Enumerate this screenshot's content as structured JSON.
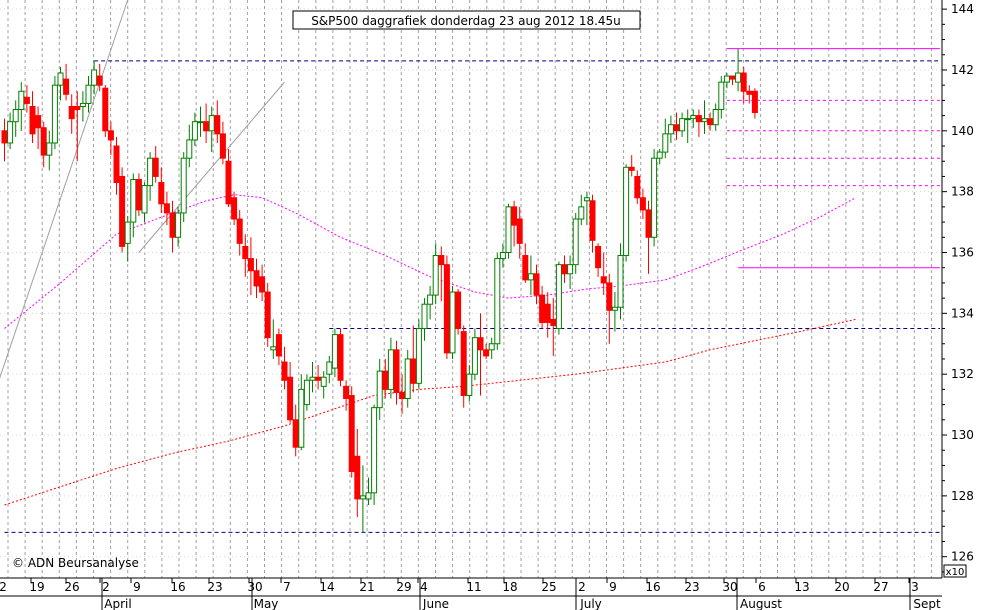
{
  "chart_data": {
    "type": "candlestick",
    "title": "S&P500 daggrafiek donderdag 23 aug 2012 18.45u",
    "copyright": "© ADN Beursanalyse",
    "y_unit_label": "x10",
    "ylim": [
      125.3,
      144.3
    ],
    "y_ticks": [
      126,
      128,
      130,
      132,
      134,
      136,
      138,
      140,
      142,
      144
    ],
    "day_labels": [
      "2",
      "19",
      "26",
      "2",
      "9",
      "16",
      "23",
      "30",
      "7",
      "14",
      "21",
      "29",
      "4",
      "11",
      "18",
      "25",
      "2",
      "9",
      "16",
      "23",
      "30",
      "6",
      "13",
      "20",
      "27",
      "3"
    ],
    "month_labels": [
      "April",
      "May",
      "June",
      "July",
      "August",
      "Sept"
    ],
    "colors": {
      "up": "#008000",
      "down": "#ff0000",
      "ma_short": "#ff00ff",
      "ma_long": "#ff0000",
      "support_line": "#000080",
      "fib_line": "#ff00ff",
      "channel": "#a0a0a0",
      "grid": "#a0a0a0"
    },
    "candles": [
      [
        140.0,
        140.4,
        139.0,
        139.6
      ],
      [
        139.6,
        140.6,
        139.4,
        140.3
      ],
      [
        140.3,
        141.0,
        139.8,
        140.7
      ],
      [
        140.7,
        141.6,
        140.0,
        141.3
      ],
      [
        141.1,
        141.5,
        140.6,
        140.9
      ],
      [
        140.8,
        141.3,
        139.6,
        139.9
      ],
      [
        140.5,
        140.8,
        139.4,
        140.1
      ],
      [
        140.1,
        140.3,
        138.8,
        139.2
      ],
      [
        139.2,
        140.0,
        138.7,
        139.6
      ],
      [
        139.6,
        141.8,
        139.4,
        141.5
      ],
      [
        141.5,
        142.1,
        141.0,
        141.9
      ],
      [
        141.7,
        142.2,
        141.0,
        141.2
      ],
      [
        140.8,
        141.2,
        139.9,
        140.4
      ],
      [
        140.8,
        141.3,
        139.0,
        140.7
      ],
      [
        140.8,
        141.3,
        140.3,
        140.9
      ],
      [
        140.9,
        141.8,
        140.6,
        141.5
      ],
      [
        141.5,
        142.3,
        141.2,
        142.0
      ],
      [
        141.8,
        142.2,
        141.3,
        141.5
      ],
      [
        141.4,
        141.5,
        139.8,
        140.0
      ],
      [
        140.0,
        140.3,
        139.2,
        139.7
      ],
      [
        139.5,
        139.8,
        137.9,
        138.3
      ],
      [
        138.5,
        138.8,
        136.0,
        136.2
      ],
      [
        136.3,
        137.2,
        135.7,
        137.0
      ],
      [
        137.0,
        138.6,
        136.5,
        138.4
      ],
      [
        138.4,
        138.6,
        137.2,
        137.4
      ],
      [
        137.3,
        138.3,
        137.0,
        138.2
      ],
      [
        138.2,
        139.3,
        137.7,
        139.1
      ],
      [
        139.1,
        139.5,
        138.3,
        138.5
      ],
      [
        138.3,
        138.8,
        137.3,
        137.6
      ],
      [
        137.6,
        138.0,
        136.9,
        137.3
      ],
      [
        137.3,
        137.7,
        136.0,
        136.5
      ],
      [
        136.5,
        137.5,
        136.2,
        137.3
      ],
      [
        137.3,
        139.3,
        137.0,
        139.1
      ],
      [
        139.1,
        140.2,
        138.8,
        139.7
      ],
      [
        139.7,
        140.6,
        139.5,
        140.3
      ],
      [
        140.3,
        140.8,
        139.8,
        140.3
      ],
      [
        140.3,
        140.9,
        139.6,
        140.0
      ],
      [
        140.0,
        140.8,
        139.3,
        140.5
      ],
      [
        140.5,
        141.0,
        139.6,
        139.9
      ],
      [
        139.9,
        140.3,
        138.9,
        139.1
      ],
      [
        139.0,
        139.4,
        137.5,
        137.6
      ],
      [
        137.8,
        138.0,
        136.9,
        137.1
      ],
      [
        137.1,
        137.4,
        135.9,
        136.3
      ],
      [
        136.2,
        136.6,
        135.2,
        135.8
      ],
      [
        135.8,
        136.5,
        134.6,
        135.4
      ],
      [
        135.4,
        135.8,
        134.5,
        134.9
      ],
      [
        135.2,
        135.6,
        134.4,
        134.7
      ],
      [
        134.7,
        135.0,
        132.9,
        133.2
      ],
      [
        132.8,
        133.8,
        132.5,
        132.9
      ],
      [
        133.3,
        133.5,
        132.3,
        132.6
      ],
      [
        132.4,
        132.9,
        131.5,
        131.8
      ],
      [
        131.9,
        132.4,
        130.4,
        130.5
      ],
      [
        130.5,
        131.0,
        129.3,
        129.6
      ],
      [
        129.6,
        132.0,
        129.5,
        131.5
      ],
      [
        131.0,
        132.0,
        130.8,
        131.8
      ],
      [
        131.8,
        132.4,
        131.4,
        131.9
      ],
      [
        131.9,
        132.3,
        131.5,
        131.8
      ],
      [
        131.6,
        132.1,
        131.2,
        131.9
      ],
      [
        132.0,
        132.6,
        131.7,
        132.4
      ],
      [
        132.2,
        133.5,
        131.9,
        133.3
      ],
      [
        133.3,
        133.5,
        131.6,
        131.8
      ],
      [
        131.6,
        131.8,
        130.8,
        131.2
      ],
      [
        131.3,
        131.6,
        128.6,
        128.8
      ],
      [
        129.3,
        130.2,
        127.3,
        127.9
      ],
      [
        127.9,
        129.0,
        126.8,
        128.0
      ],
      [
        127.9,
        128.6,
        127.7,
        128.1
      ],
      [
        128.1,
        131.0,
        127.7,
        130.9
      ],
      [
        130.9,
        132.5,
        130.5,
        132.1
      ],
      [
        132.1,
        132.5,
        131.2,
        131.5
      ],
      [
        131.5,
        133.2,
        131.2,
        132.8
      ],
      [
        132.8,
        133.1,
        131.0,
        131.4
      ],
      [
        131.4,
        132.0,
        130.7,
        131.2
      ],
      [
        131.2,
        132.8,
        130.9,
        132.5
      ],
      [
        132.5,
        133.6,
        131.4,
        131.7
      ],
      [
        131.7,
        133.8,
        131.5,
        133.5
      ],
      [
        133.5,
        134.5,
        133.1,
        134.3
      ],
      [
        134.3,
        134.9,
        133.8,
        134.6
      ],
      [
        134.6,
        136.3,
        134.3,
        135.9
      ],
      [
        135.9,
        136.2,
        134.4,
        135.6
      ],
      [
        135.6,
        135.9,
        132.5,
        132.7
      ],
      [
        132.7,
        134.9,
        132.5,
        134.7
      ],
      [
        134.7,
        134.8,
        133.3,
        133.5
      ],
      [
        133.4,
        133.6,
        130.9,
        131.3
      ],
      [
        131.3,
        132.3,
        131.1,
        132.0
      ],
      [
        132.0,
        133.5,
        131.8,
        133.2
      ],
      [
        133.2,
        134.0,
        131.3,
        132.8
      ],
      [
        132.8,
        133.0,
        132.5,
        132.6
      ],
      [
        132.8,
        133.2,
        132.5,
        133.0
      ],
      [
        133.0,
        136.0,
        132.8,
        135.8
      ],
      [
        135.8,
        136.3,
        135.5,
        136.0
      ],
      [
        136.0,
        137.6,
        135.8,
        137.5
      ],
      [
        137.5,
        137.7,
        136.2,
        136.9
      ],
      [
        137.1,
        137.5,
        135.8,
        136.3
      ],
      [
        135.9,
        136.3,
        135.0,
        135.1
      ],
      [
        135.1,
        135.9,
        134.6,
        135.3
      ],
      [
        135.3,
        135.6,
        134.3,
        134.6
      ],
      [
        134.6,
        134.9,
        133.5,
        133.7
      ],
      [
        134.3,
        134.7,
        133.2,
        133.7
      ],
      [
        133.8,
        134.5,
        132.6,
        133.6
      ],
      [
        133.5,
        135.7,
        133.3,
        135.6
      ],
      [
        135.6,
        135.9,
        135.0,
        135.3
      ],
      [
        135.3,
        135.9,
        134.8,
        135.6
      ],
      [
        135.6,
        137.3,
        135.3,
        137.1
      ],
      [
        137.1,
        137.9,
        136.9,
        137.5
      ],
      [
        137.7,
        138.0,
        136.9,
        137.8
      ],
      [
        137.7,
        137.9,
        136.0,
        136.4
      ],
      [
        136.2,
        136.3,
        135.2,
        135.5
      ],
      [
        135.2,
        136.0,
        134.6,
        135.0
      ],
      [
        135.0,
        135.3,
        133.0,
        134.1
      ],
      [
        134.1,
        134.7,
        133.4,
        134.2
      ],
      [
        134.2,
        136.3,
        133.8,
        135.9
      ],
      [
        135.9,
        138.9,
        135.7,
        138.8
      ],
      [
        138.8,
        139.2,
        138.5,
        138.7
      ],
      [
        138.5,
        138.7,
        137.6,
        137.8
      ],
      [
        137.8,
        138.1,
        137.1,
        137.4
      ],
      [
        137.4,
        137.7,
        135.3,
        136.5
      ],
      [
        136.5,
        139.4,
        136.2,
        139.1
      ],
      [
        139.1,
        139.4,
        138.9,
        139.3
      ],
      [
        139.3,
        140.4,
        139.1,
        139.9
      ],
      [
        139.9,
        140.5,
        139.6,
        140.2
      ],
      [
        140.2,
        140.6,
        139.7,
        140.0
      ],
      [
        140.0,
        140.6,
        139.8,
        140.4
      ],
      [
        140.4,
        140.7,
        139.6,
        140.4
      ],
      [
        140.4,
        140.7,
        140.1,
        140.5
      ],
      [
        140.5,
        140.7,
        139.8,
        140.3
      ],
      [
        140.3,
        141.0,
        139.9,
        140.4
      ],
      [
        140.4,
        140.6,
        140.0,
        140.2
      ],
      [
        140.2,
        140.9,
        140.0,
        140.7
      ],
      [
        140.7,
        141.8,
        140.4,
        141.6
      ],
      [
        141.6,
        141.9,
        141.4,
        141.8
      ],
      [
        141.8,
        141.8,
        141.5,
        141.7
      ],
      [
        141.6,
        142.7,
        141.3,
        141.9
      ],
      [
        141.9,
        142.1,
        140.9,
        141.3
      ],
      [
        141.3,
        141.5,
        140.9,
        141.2
      ],
      [
        141.3,
        141.4,
        140.4,
        140.6
      ]
    ],
    "ma_short": [
      [
        0,
        133.5
      ],
      [
        10,
        135.0
      ],
      [
        20,
        136.6
      ],
      [
        30,
        137.3
      ],
      [
        36,
        137.7
      ],
      [
        41,
        137.9
      ],
      [
        46,
        137.8
      ],
      [
        52,
        137.3
      ],
      [
        60,
        136.5
      ],
      [
        68,
        135.9
      ],
      [
        76,
        135.2
      ],
      [
        84,
        134.7
      ],
      [
        90,
        134.5
      ],
      [
        97,
        134.6
      ],
      [
        104,
        134.8
      ],
      [
        110,
        134.9
      ],
      [
        118,
        135.1
      ],
      [
        124,
        135.5
      ],
      [
        132,
        136.1
      ],
      [
        139,
        136.6
      ],
      [
        146,
        137.2
      ],
      [
        152,
        137.8
      ]
    ],
    "ma_long": [
      [
        0,
        127.7
      ],
      [
        10,
        128.3
      ],
      [
        20,
        128.9
      ],
      [
        30,
        129.4
      ],
      [
        40,
        129.8
      ],
      [
        50,
        130.3
      ],
      [
        58,
        130.8
      ],
      [
        66,
        131.3
      ],
      [
        74,
        131.5
      ],
      [
        82,
        131.6
      ],
      [
        92,
        131.8
      ],
      [
        102,
        132.0
      ],
      [
        110,
        132.2
      ],
      [
        118,
        132.4
      ],
      [
        126,
        132.8
      ],
      [
        134,
        133.1
      ],
      [
        142,
        133.4
      ],
      [
        152,
        133.8
      ]
    ],
    "hlines": [
      {
        "value": 142.3,
        "style": "support",
        "x_from": 16,
        "x_to": 168
      },
      {
        "value": 133.5,
        "style": "support",
        "x_from": 58,
        "x_to": 168
      },
      {
        "value": 126.8,
        "style": "support",
        "x_from": 0,
        "x_to": 168
      },
      {
        "value": 142.7,
        "style": "fib_solid",
        "x_from": 129,
        "x_to": 168
      },
      {
        "value": 141.0,
        "style": "fib_dashed",
        "x_from": 129,
        "x_to": 168
      },
      {
        "value": 140.0,
        "style": "fib_dashed",
        "x_from": 129,
        "x_to": 168
      },
      {
        "value": 139.1,
        "style": "fib_dashed",
        "x_from": 129,
        "x_to": 168
      },
      {
        "value": 138.2,
        "style": "fib_dashed",
        "x_from": 129,
        "x_to": 168
      },
      {
        "value": 135.5,
        "style": "fib_solid",
        "x_from": 131,
        "x_to": 168
      }
    ],
    "channel_lines": [
      {
        "from": [
          -1,
          131.8
        ],
        "to": [
          22,
          144.3
        ]
      },
      {
        "from": [
          24,
          136.0
        ],
        "to": [
          50,
          141.6
        ]
      }
    ]
  }
}
